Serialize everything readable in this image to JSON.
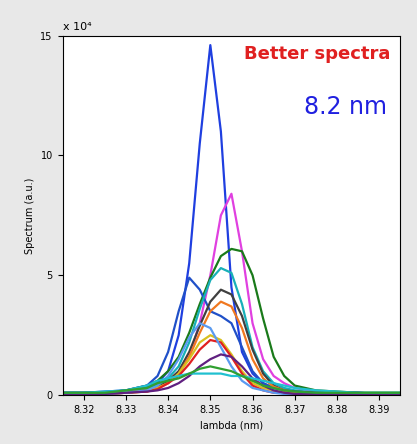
{
  "chart_data": {
    "type": "line",
    "x_label": "lambda (nm)",
    "y_label": "Spectrum (a.u.)",
    "annotations": [
      "Better spectra",
      "8.2 nm",
      "x 10⁴"
    ],
    "xlim": [
      8.315,
      8.395
    ],
    "xticks": [
      8.32,
      8.33,
      8.34,
      8.35,
      8.36,
      8.37,
      8.38,
      8.39
    ],
    "ylim": [
      0,
      15
    ],
    "yticks": [
      0,
      5,
      10,
      15
    ],
    "grid": false,
    "x": [
      8.315,
      8.32,
      8.325,
      8.33,
      8.335,
      8.3375,
      8.34,
      8.3425,
      8.345,
      8.3475,
      8.35,
      8.3525,
      8.355,
      8.3575,
      8.36,
      8.3625,
      8.365,
      8.3675,
      8.37,
      8.375,
      8.38,
      8.385,
      8.39,
      8.395
    ],
    "series": [
      {
        "color": "#1f3fe0",
        "values": [
          0.1,
          0.1,
          0.15,
          0.2,
          0.3,
          0.5,
          1.0,
          2.5,
          5.5,
          10.5,
          14.6,
          11.0,
          4.5,
          1.8,
          0.9,
          0.5,
          0.3,
          0.2,
          0.15,
          0.1,
          0.1,
          0.1,
          0.05,
          0.05
        ]
      },
      {
        "color": "#e040e0",
        "values": [
          0.05,
          0.05,
          0.05,
          0.1,
          0.2,
          0.3,
          0.5,
          0.9,
          1.6,
          3.0,
          5.0,
          7.5,
          8.4,
          6.0,
          3.0,
          1.5,
          0.8,
          0.5,
          0.3,
          0.15,
          0.1,
          0.1,
          0.05,
          0.05
        ]
      },
      {
        "color": "#1a7a1a",
        "values": [
          0.1,
          0.1,
          0.1,
          0.2,
          0.4,
          0.6,
          1.0,
          1.6,
          2.6,
          3.8,
          4.9,
          5.8,
          6.1,
          6.0,
          5.0,
          3.2,
          1.6,
          0.8,
          0.4,
          0.2,
          0.15,
          0.1,
          0.1,
          0.1
        ]
      },
      {
        "color": "#2050c8",
        "values": [
          0.1,
          0.1,
          0.1,
          0.2,
          0.4,
          0.8,
          1.8,
          3.5,
          4.9,
          4.4,
          3.5,
          3.3,
          3.0,
          2.0,
          1.0,
          0.5,
          0.3,
          0.2,
          0.1,
          0.1,
          0.1,
          0.1,
          0.05,
          0.05
        ]
      },
      {
        "color": "#18b0b8",
        "values": [
          0.05,
          0.05,
          0.05,
          0.1,
          0.2,
          0.4,
          0.7,
          1.2,
          2.2,
          3.6,
          4.8,
          5.3,
          5.1,
          3.8,
          2.0,
          1.0,
          0.5,
          0.3,
          0.2,
          0.1,
          0.05,
          0.05,
          0.05,
          0.05
        ]
      },
      {
        "color": "#404040",
        "values": [
          0.05,
          0.05,
          0.1,
          0.1,
          0.2,
          0.3,
          0.6,
          1.0,
          1.8,
          2.9,
          3.9,
          4.4,
          4.2,
          3.3,
          1.9,
          0.9,
          0.4,
          0.2,
          0.15,
          0.1,
          0.05,
          0.05,
          0.05,
          0.05
        ]
      },
      {
        "color": "#f07820",
        "values": [
          0.05,
          0.05,
          0.05,
          0.1,
          0.2,
          0.3,
          0.5,
          0.9,
          1.6,
          2.6,
          3.5,
          3.9,
          3.7,
          2.8,
          1.5,
          0.7,
          0.35,
          0.2,
          0.1,
          0.05,
          0.05,
          0.05,
          0.05,
          0.05
        ]
      },
      {
        "color": "#d8c020",
        "values": [
          0.05,
          0.05,
          0.05,
          0.1,
          0.15,
          0.3,
          0.5,
          0.9,
          1.5,
          2.2,
          2.5,
          2.3,
          1.7,
          1.0,
          0.5,
          0.3,
          0.2,
          0.1,
          0.05,
          0.05,
          0.05,
          0.05,
          0.05,
          0.05
        ]
      },
      {
        "color": "#e02020",
        "values": [
          0.05,
          0.05,
          0.05,
          0.1,
          0.15,
          0.25,
          0.5,
          0.8,
          1.3,
          1.9,
          2.3,
          2.2,
          1.6,
          0.9,
          0.4,
          0.2,
          0.1,
          0.1,
          0.05,
          0.05,
          0.05,
          0.05,
          0.05,
          0.05
        ]
      },
      {
        "color": "#5a9af0",
        "values": [
          0.05,
          0.05,
          0.05,
          0.1,
          0.2,
          0.4,
          0.8,
          1.5,
          2.4,
          3.0,
          2.8,
          2.0,
          1.2,
          0.6,
          0.3,
          0.2,
          0.1,
          0.05,
          0.05,
          0.05,
          0.05,
          0.05,
          0.05,
          0.05
        ]
      },
      {
        "color": "#602080",
        "values": [
          0.05,
          0.05,
          0.05,
          0.1,
          0.15,
          0.2,
          0.3,
          0.5,
          0.8,
          1.2,
          1.5,
          1.7,
          1.6,
          1.2,
          0.7,
          0.4,
          0.2,
          0.1,
          0.05,
          0.05,
          0.05,
          0.05,
          0.05,
          0.05
        ]
      },
      {
        "color": "#20c0d0",
        "values": [
          0.1,
          0.1,
          0.15,
          0.2,
          0.4,
          0.6,
          0.7,
          0.8,
          0.9,
          0.9,
          0.9,
          0.9,
          0.8,
          0.8,
          0.7,
          0.6,
          0.5,
          0.4,
          0.3,
          0.2,
          0.15,
          0.1,
          0.1,
          0.1
        ]
      },
      {
        "color": "#30a030",
        "values": [
          0.1,
          0.1,
          0.1,
          0.2,
          0.3,
          0.5,
          0.6,
          0.7,
          0.9,
          1.1,
          1.2,
          1.1,
          1.0,
          0.8,
          0.6,
          0.4,
          0.3,
          0.2,
          0.15,
          0.1,
          0.1,
          0.1,
          0.1,
          0.1
        ]
      }
    ]
  }
}
